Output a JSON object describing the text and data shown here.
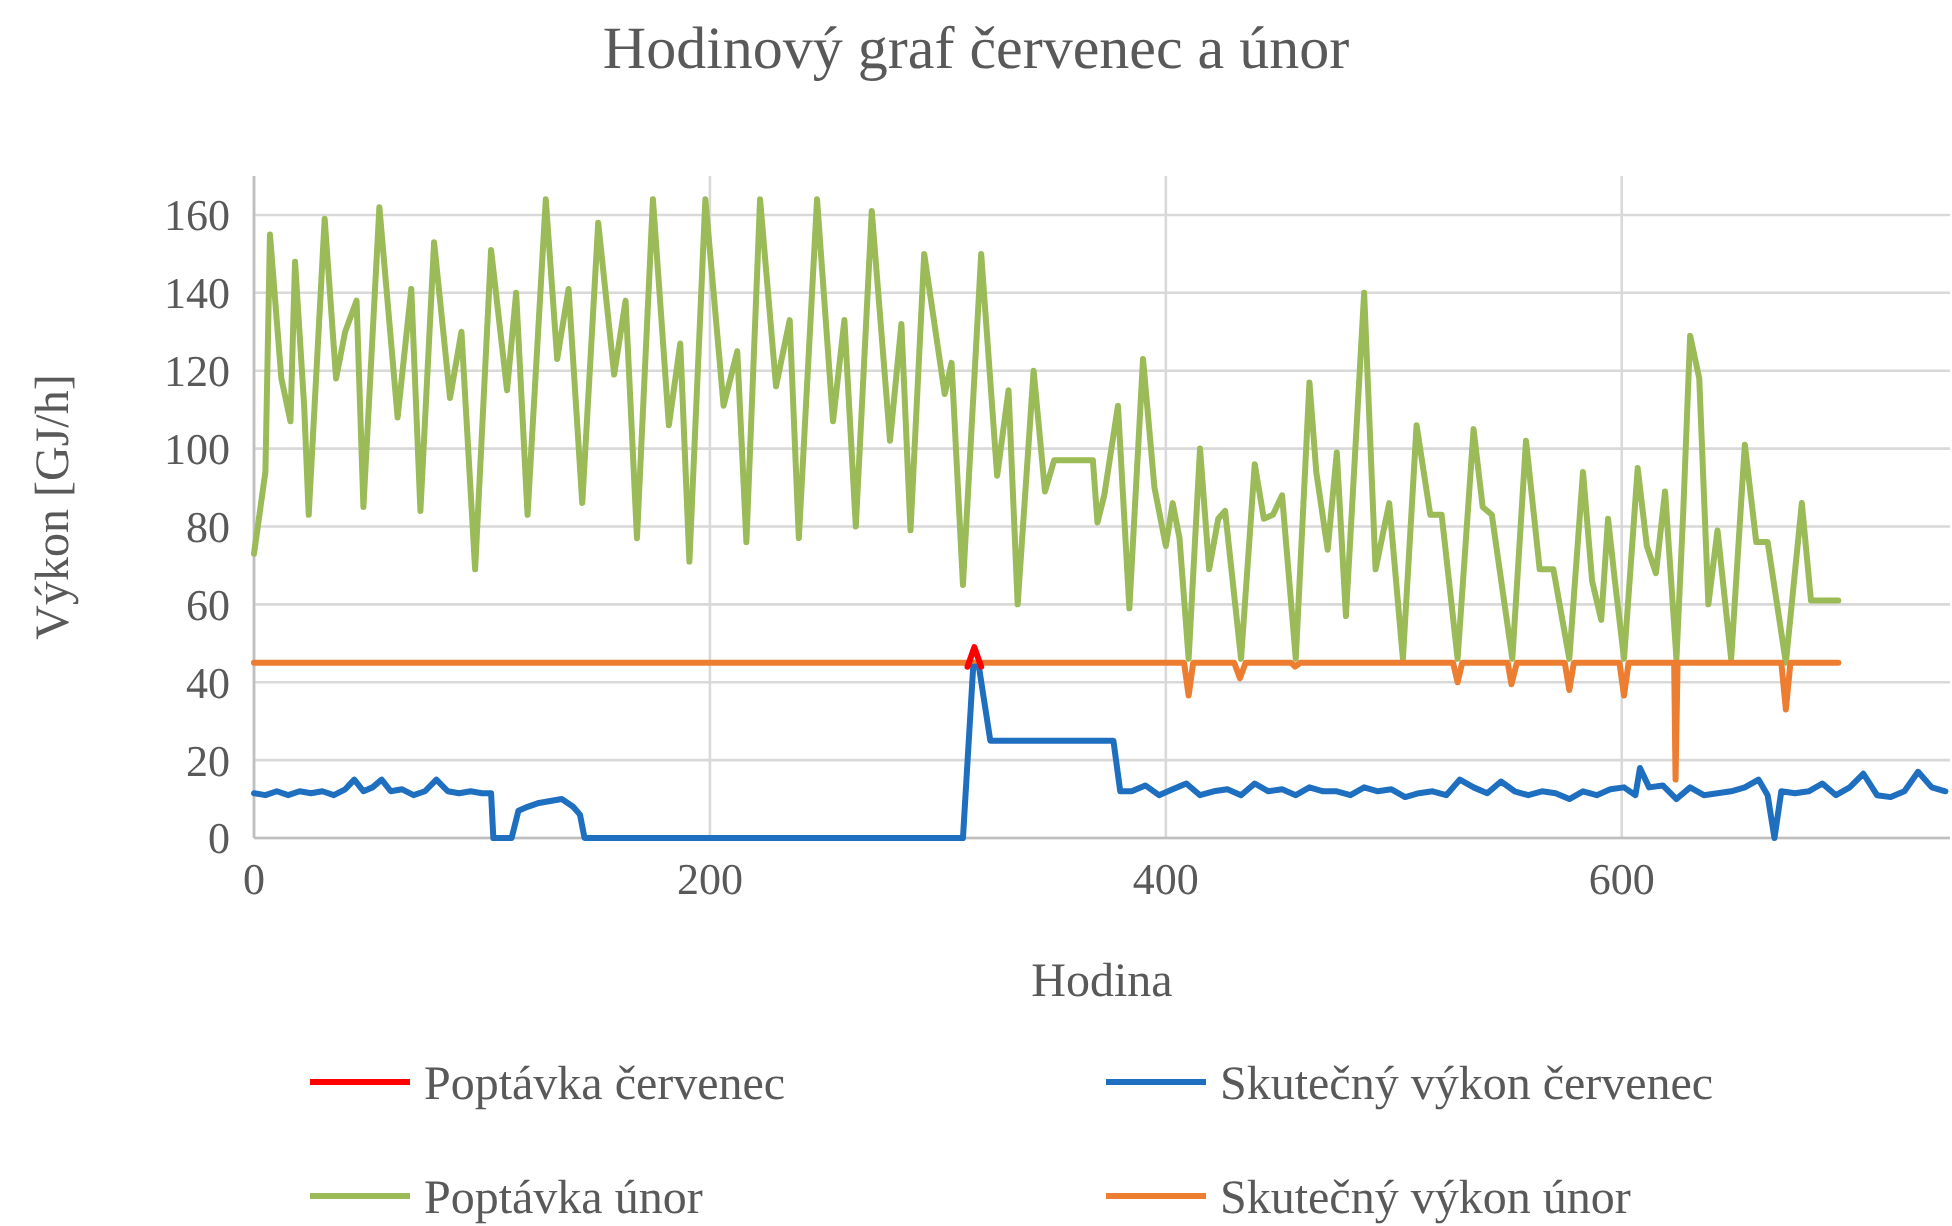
{
  "chart_data": {
    "type": "line",
    "title": "Hodinový graf červenec a únor",
    "xlabel": "Hodina",
    "ylabel": "Výkon [GJ/h]",
    "xlim": [
      0,
      744
    ],
    "xticks": [
      0,
      200,
      400,
      600
    ],
    "ylim": [
      0,
      170
    ],
    "yticks": [
      0,
      20,
      40,
      60,
      80,
      100,
      120,
      140,
      160
    ],
    "grid": true,
    "legend": "bottom",
    "line_style": "solid",
    "marker": "none",
    "series": [
      {
        "name": "Poptávka červenec",
        "color": "#ff0000",
        "x": [
          313,
          316,
          319
        ],
        "values": [
          44,
          49,
          44
        ]
      },
      {
        "name": "Skutečný výkon červenec",
        "color": "#1f6fc0",
        "x": [
          0,
          5,
          10,
          15,
          20,
          25,
          30,
          35,
          40,
          44,
          48,
          52,
          56,
          60,
          65,
          70,
          75,
          80,
          85,
          90,
          95,
          100,
          104,
          105,
          113,
          116,
          120,
          125,
          130,
          135,
          140,
          143,
          145,
          200,
          250,
          300,
          311,
          315.5,
          318,
          323,
          350,
          377,
          380,
          385,
          391,
          397,
          403,
          409,
          415,
          421,
          427,
          433,
          439,
          445,
          451,
          457,
          463,
          469,
          475,
          481,
          487,
          493,
          499,
          505,
          511,
          517,
          523,
          529,
          535,
          541,
          547,
          553,
          559,
          565,
          571,
          577,
          583,
          589,
          595,
          601,
          606,
          608,
          612,
          618,
          624,
          630,
          636,
          642,
          648,
          654,
          660,
          664,
          667,
          670,
          676,
          682,
          688,
          694,
          700,
          706,
          712,
          718,
          724,
          730,
          736,
          742
        ],
        "values": [
          11.5,
          11,
          12,
          11,
          12,
          11.5,
          12,
          11,
          12.5,
          15,
          12,
          13,
          15,
          12,
          12.5,
          11,
          12,
          15,
          12,
          11.5,
          12,
          11.5,
          11.5,
          0,
          0,
          7,
          8,
          9,
          9.5,
          10,
          8,
          6,
          0,
          0,
          0,
          0,
          0,
          44,
          44,
          25,
          25,
          25,
          12,
          12,
          13.5,
          11,
          12.5,
          14,
          11,
          12,
          12.5,
          11,
          14,
          12,
          12.5,
          11,
          13,
          12,
          12,
          11,
          13,
          12,
          12.5,
          10.5,
          11.5,
          12,
          11,
          15,
          13,
          11.5,
          14.5,
          12,
          11,
          12,
          11.5,
          10,
          12,
          11,
          12.5,
          13,
          11,
          18,
          13,
          13.5,
          10,
          13,
          11,
          11.5,
          12,
          13,
          15,
          11,
          0,
          12,
          11.5,
          12,
          14,
          11,
          13,
          16.5,
          11,
          10.5,
          12,
          17,
          13,
          12
        ]
      },
      {
        "name": "Poptávka únor",
        "color": "#9bbb59",
        "x": [
          0,
          5,
          7,
          12,
          16,
          18,
          22,
          24,
          31,
          36,
          40,
          45,
          48,
          55,
          63,
          69,
          73,
          79,
          86,
          91,
          97,
          104,
          111,
          115,
          120,
          128,
          133,
          138,
          144,
          151,
          158,
          163,
          168,
          175,
          182,
          187,
          191,
          198,
          206,
          212,
          216,
          222,
          229,
          235,
          239,
          247,
          254,
          259,
          264,
          271,
          279,
          284,
          288,
          294,
          303,
          306,
          311,
          319,
          326,
          331,
          335,
          342,
          347,
          351,
          368,
          370,
          373,
          379,
          384,
          390,
          395,
          400,
          403,
          406,
          410,
          415,
          419,
          423,
          426,
          433,
          439,
          443,
          447,
          451,
          457,
          463,
          466,
          471,
          475,
          479,
          487,
          492,
          498,
          504,
          510,
          516,
          521,
          528,
          535,
          539,
          543,
          552,
          558,
          564,
          570,
          577,
          583,
          587,
          591,
          594,
          597,
          601,
          607,
          611,
          615,
          619,
          624,
          627,
          630,
          634,
          638,
          642,
          648,
          654,
          659,
          664,
          672,
          679,
          683,
          695
        ],
        "values": [
          73,
          94,
          155,
          118,
          107,
          148,
          111,
          83,
          159,
          118,
          130,
          138,
          85,
          162,
          108,
          141,
          84,
          153,
          113,
          130,
          69,
          151,
          115,
          140,
          83,
          164,
          123,
          141,
          86,
          158,
          119,
          138,
          77,
          164,
          106,
          127,
          71,
          164,
          111,
          125,
          76,
          164,
          116,
          133,
          77,
          164,
          107,
          133,
          80,
          161,
          102,
          132,
          79,
          150,
          114,
          122,
          65,
          150,
          93,
          115,
          60,
          120,
          89,
          97,
          97,
          81,
          88,
          111,
          59,
          123,
          90,
          75,
          86,
          77,
          46,
          100,
          69,
          82,
          84,
          46,
          96,
          82,
          83,
          88,
          46,
          117,
          94,
          74,
          99,
          57,
          140,
          69,
          86,
          46,
          106,
          83,
          83,
          46,
          105,
          85,
          83,
          46,
          102,
          69,
          69,
          46,
          94,
          66,
          56,
          82,
          66,
          46,
          95,
          75,
          68,
          89,
          46,
          84,
          129,
          118,
          60,
          79,
          46,
          101,
          76,
          76,
          45,
          86,
          61,
          61
        ]
      },
      {
        "name": "Skutečný výkon únor",
        "color": "#ed7d31",
        "x": [
          0,
          408,
          410,
          412,
          430,
          432.5,
          435,
          455,
          456.7,
          459,
          526,
          528,
          530,
          550,
          551.6,
          554,
          575,
          577,
          579,
          599,
          601,
          603,
          623,
          623.6,
          624.5,
          670,
          672,
          674,
          695
        ],
        "values": [
          45,
          45,
          36.6,
          45,
          45,
          41,
          45,
          45,
          44,
          45,
          45,
          40,
          45,
          45,
          39.5,
          45,
          45,
          38,
          45,
          45,
          36.6,
          45,
          45,
          15,
          45,
          45,
          33,
          45,
          45
        ]
      }
    ]
  }
}
